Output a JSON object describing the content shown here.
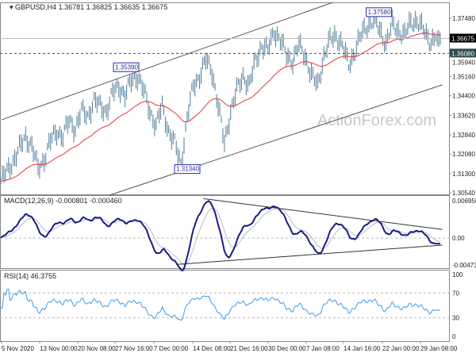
{
  "header": {
    "symbol": "GBPUSD,H4",
    "ohlc": "1.36781 1.36825 1.36635 1.36675"
  },
  "watermark": "ActionForex.com",
  "chart_data": [
    {
      "type": "bar",
      "title": "GBPUSD,H4 1.36781 1.36825 1.36635 1.36675",
      "ylim": [
        1.3054,
        1.3787
      ],
      "yticks": [
        "1.37480",
        "1.36675",
        "1.36080",
        "1.35940",
        "1.35160",
        "1.34400",
        "1.33620",
        "1.32840",
        "1.32080",
        "1.31300",
        "1.30540"
      ],
      "current_price": 1.36675,
      "current_price_label": "1.36675",
      "level_line": 1.3608,
      "level_label": "1.36080",
      "closes": [
        1.31,
        1.314,
        1.318,
        1.323,
        1.328,
        1.324,
        1.315,
        1.319,
        1.326,
        1.33,
        1.328,
        1.334,
        1.331,
        1.338,
        1.336,
        1.342,
        1.34,
        1.338,
        1.345,
        1.348,
        1.344,
        1.35,
        1.352,
        1.346,
        1.338,
        1.332,
        1.34,
        1.33,
        1.325,
        1.317,
        1.335,
        1.348,
        1.352,
        1.358,
        1.354,
        1.34,
        1.325,
        1.338,
        1.346,
        1.352,
        1.348,
        1.358,
        1.364,
        1.362,
        1.37,
        1.366,
        1.36,
        1.358,
        1.364,
        1.36,
        1.352,
        1.348,
        1.36,
        1.366,
        1.368,
        1.364,
        1.356,
        1.362,
        1.368,
        1.372,
        1.374,
        1.37,
        1.365,
        1.372,
        1.37,
        1.368,
        1.373,
        1.374,
        1.37,
        1.366,
        1.36675
      ],
      "annotations": [
        {
          "label": "1.35390",
          "date": "2020-11-27",
          "price": 1.3539
        },
        {
          "label": "1.31340",
          "date": "2020-12-11",
          "price": 1.3134
        },
        {
          "label": "1.37580",
          "date": "2021-01-19",
          "price": 1.3758
        }
      ],
      "trendlines": [
        {
          "from": {
            "date": "2020-11-05",
            "price": 1.3344
          },
          "to": {
            "date": "2021-01-12",
            "price": 1.3811
          }
        },
        {
          "from": {
            "date": "2020-11-26",
            "price": 1.3045
          },
          "to": {
            "date": "2021-02-02",
            "price": 1.3483
          }
        }
      ],
      "moving_average_color": "#e8323a",
      "bar_color": "#4f7d99"
    },
    {
      "type": "line",
      "title": "MACD(12,26,9) -0.000801 -0.000460",
      "ylim": [
        -0.004736,
        0.006956
      ],
      "yticks": [
        "0.006956",
        "0.00",
        "-0.004736"
      ],
      "series": [
        {
          "color": "#1a1a8c"
        },
        {
          "color": "#bbbbbb"
        }
      ],
      "trendlines": [
        {
          "from": {
            "date": "2020-12-11",
            "value": -0.00465
          },
          "to": {
            "date": "2021-02-02",
            "value": -0.00125
          }
        },
        {
          "from": {
            "date": "2020-12-16",
            "value": 0.0069
          },
          "to": {
            "date": "2021-02-02",
            "value": 0.0015
          }
        }
      ]
    },
    {
      "type": "line",
      "title": "RSI(14) 46.3755",
      "ylim": [
        0,
        100
      ],
      "yticks": [
        "100",
        "70",
        "30",
        "0"
      ],
      "levels": [
        70,
        30
      ],
      "series": [
        {
          "color": "#3d9bf0"
        }
      ]
    }
  ],
  "xticks": [
    {
      "label": "5 Nov 2020",
      "date": "2020-11-05"
    },
    {
      "label": "13 Nov 00:00",
      "date": "2020-11-13"
    },
    {
      "label": "20 Nov 08:00",
      "date": "2020-11-20"
    },
    {
      "label": "27 Nov 16:00",
      "date": "2020-11-27"
    },
    {
      "label": "7 Dec 00:00",
      "date": "2020-12-07"
    },
    {
      "label": "14 Dec 08:00",
      "date": "2020-12-14"
    },
    {
      "label": "21 Dec 16:00",
      "date": "2020-12-21"
    },
    {
      "label": "30 Dec 00:00",
      "date": "2020-12-30"
    },
    {
      "label": "7 Jan 08:00",
      "date": "2021-01-07"
    },
    {
      "label": "14 Jan 16:00",
      "date": "2021-01-14"
    },
    {
      "label": "22 Jan 00:00",
      "date": "2021-01-22"
    },
    {
      "label": "29 Jan 08:00",
      "date": "2021-01-29"
    }
  ]
}
